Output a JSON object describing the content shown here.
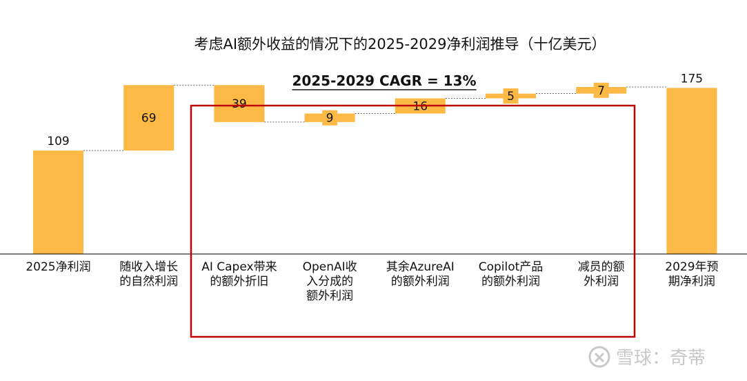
{
  "chart_data": {
    "type": "bar",
    "subtype": "waterfall",
    "title": "考虑AI额外收益的情况下的2025-2029净利润推导（十亿美元）",
    "subtitle": "2025-2029 CAGR = 13%",
    "categories": [
      [
        "2025净利润"
      ],
      [
        "随收入增长",
        "的自然利润"
      ],
      [
        "AI Capex带来",
        "的额外折旧"
      ],
      [
        "OpenAI收",
        "入分成的",
        "额外利润"
      ],
      [
        "其余AzureAI",
        "的额外利润"
      ],
      [
        "Copilot产品",
        "的额外利润"
      ],
      [
        "减员的额",
        "外利润"
      ],
      [
        "2029年预",
        "期净利润"
      ]
    ],
    "values": [
      109,
      69,
      39,
      9,
      16,
      5,
      7,
      175
    ],
    "labels": [
      "109",
      "69",
      "39",
      "9",
      "16",
      "5",
      "7",
      "175"
    ],
    "bars": [
      {
        "start": 0,
        "end": 109
      },
      {
        "start": 109,
        "end": 178
      },
      {
        "start": 178,
        "end": 139
      },
      {
        "start": 139,
        "end": 148
      },
      {
        "start": 148,
        "end": 164
      },
      {
        "start": 164,
        "end": 169
      },
      {
        "start": 169,
        "end": 176
      },
      {
        "start": 0,
        "end": 175
      }
    ],
    "ylim": [
      0,
      200
    ],
    "grid": false,
    "bar_color": "#FDB945",
    "highlight_box_color": "#C00000",
    "highlight_range": [
      2,
      6
    ]
  },
  "watermark": "雪球：奇蒂"
}
